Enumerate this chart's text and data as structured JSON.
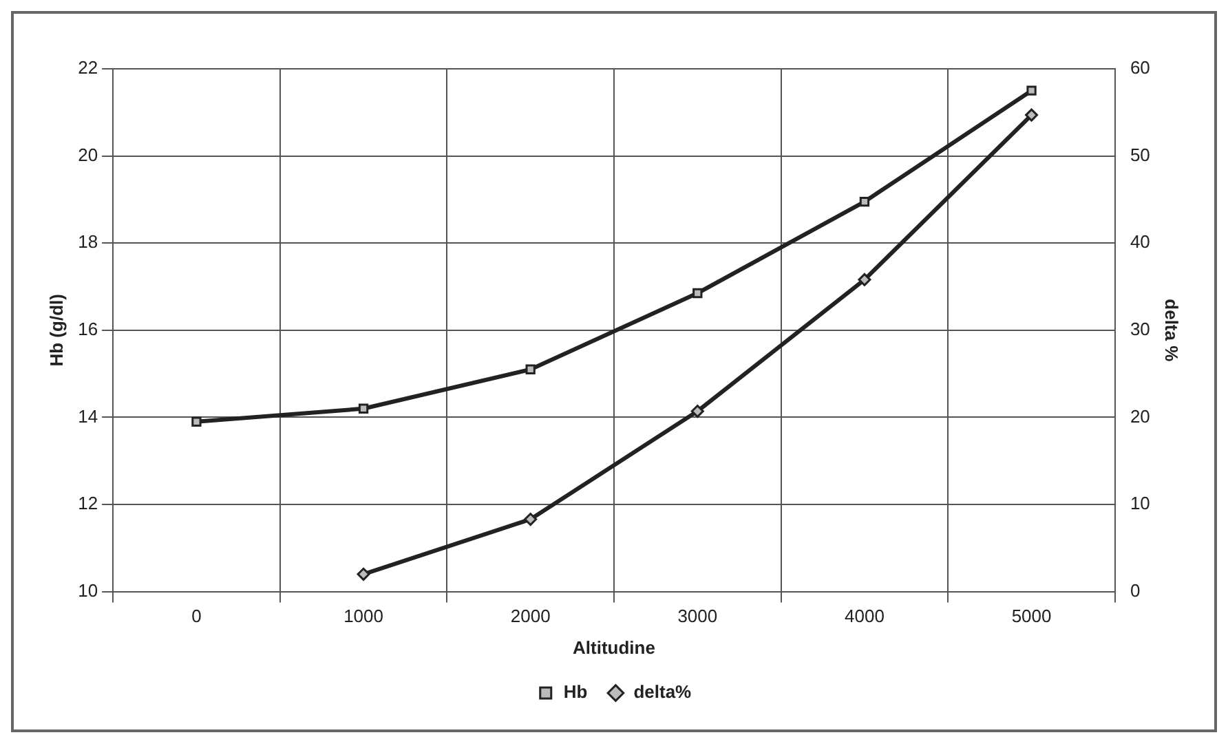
{
  "chart_data": {
    "type": "line",
    "xlabel": "Altitudine",
    "ylabel": "Hb (g/dl)",
    "y2label": "delta %",
    "categories": [
      "0",
      "1000",
      "2000",
      "3000",
      "4000",
      "5000"
    ],
    "series": [
      {
        "name": "Hb",
        "color": "#222222",
        "marker": "square",
        "values": [
          13.9,
          14.2,
          15.1,
          16.85,
          18.95,
          21.5
        ]
      },
      {
        "name": "delta%",
        "color": "#222222",
        "marker": "diamond",
        "axis": "y2",
        "values": [
          null,
          2,
          8.3,
          20.7,
          35.8,
          54.7
        ]
      }
    ],
    "ylim": [
      10,
      22
    ],
    "yticks": [
      10,
      12,
      14,
      16,
      18,
      20,
      22
    ],
    "y2lim": [
      0,
      60
    ],
    "y2ticks": [
      0,
      10,
      20,
      30,
      40,
      50,
      60
    ],
    "grid": true,
    "legend": "bottom"
  }
}
